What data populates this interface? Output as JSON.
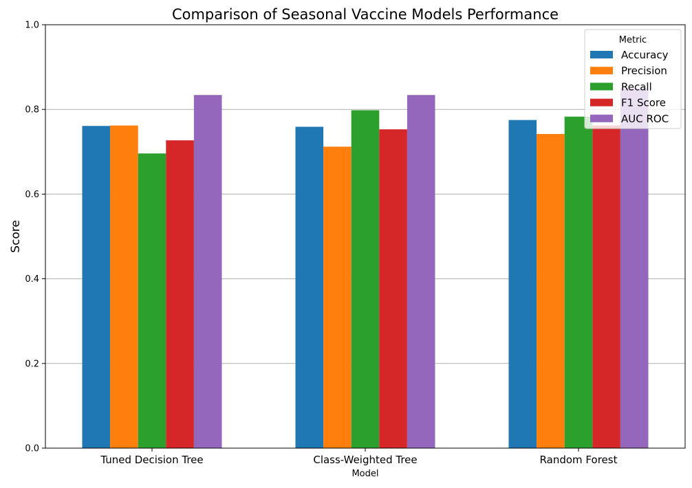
{
  "chart_data": {
    "type": "bar",
    "title": "Comparison of Seasonal Vaccine Models Performance",
    "xlabel": "Model",
    "ylabel": "Score",
    "ylim": [
      0,
      1.0
    ],
    "yticks": [
      "0.0",
      "0.2",
      "0.4",
      "0.6",
      "0.8",
      "1.0"
    ],
    "ytick_values": [
      0.0,
      0.2,
      0.4,
      0.6,
      0.8,
      1.0
    ],
    "grid": "horizontal",
    "legend_position": "top-right",
    "legend_title": "Metric",
    "categories": [
      "Tuned Decision Tree",
      "Class-Weighted Tree",
      "Random Forest"
    ],
    "series": [
      {
        "name": "Accuracy",
        "color": "#1f77b4",
        "values": [
          0.761,
          0.759,
          0.775
        ]
      },
      {
        "name": "Precision",
        "color": "#ff7f0e",
        "values": [
          0.762,
          0.712,
          0.742
        ]
      },
      {
        "name": "Recall",
        "color": "#2ca02c",
        "values": [
          0.696,
          0.798,
          0.783
        ]
      },
      {
        "name": "F1 Score",
        "color": "#d62728",
        "values": [
          0.727,
          0.753,
          0.762
        ]
      },
      {
        "name": "AUC ROC",
        "color": "#9467bd",
        "values": [
          0.834,
          0.834,
          0.85
        ]
      }
    ]
  }
}
